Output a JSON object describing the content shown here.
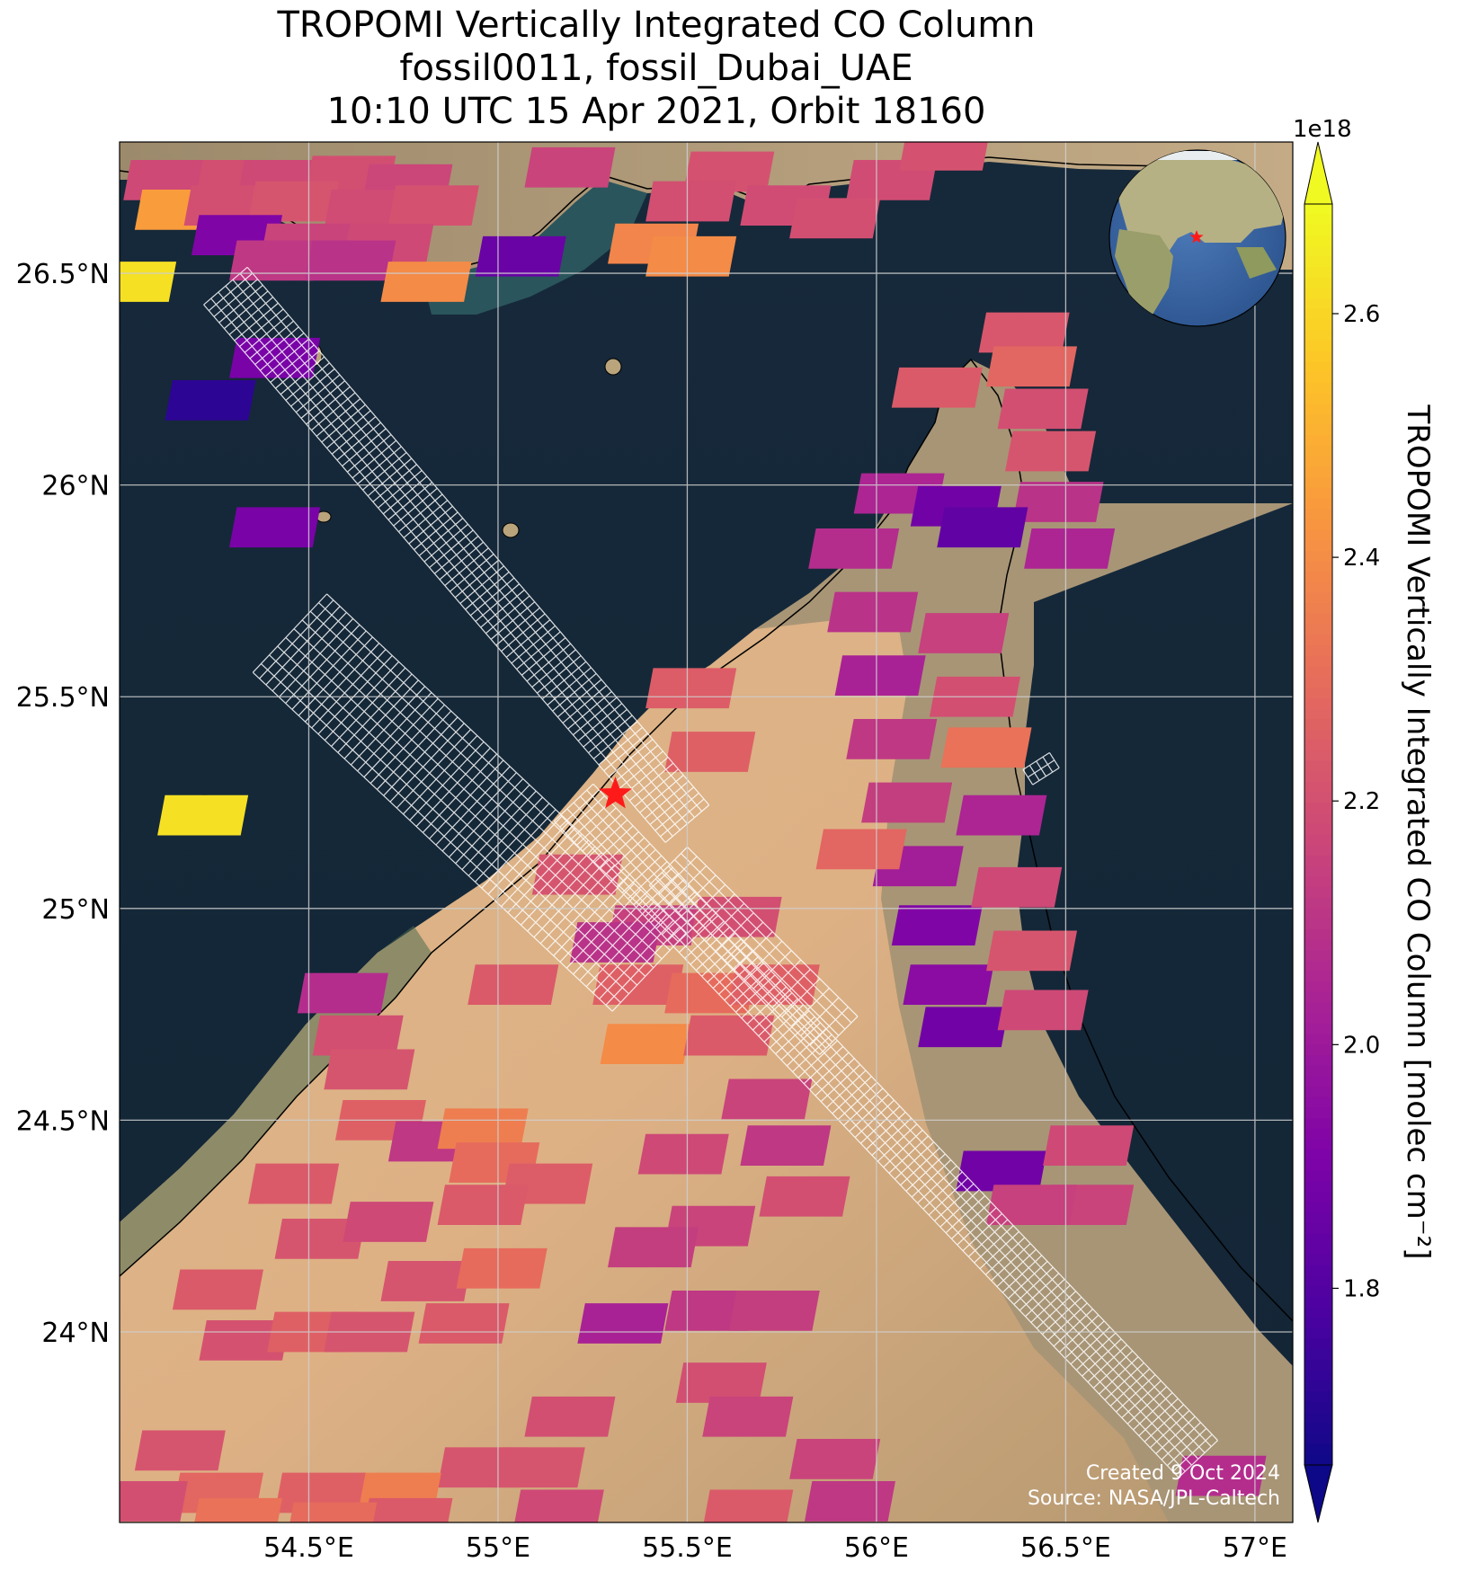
{
  "title": {
    "line1": "TROPOMI Vertically Integrated CO Column",
    "line2": "fossil0011, fossil_Dubai_UAE",
    "line3": "10:10 UTC 15 Apr 2021, Orbit 18160"
  },
  "credits": {
    "created": "Created 9 Oct 2024",
    "source": "Source: NASA/JPL-Caltech"
  },
  "colorbar": {
    "label": "TROPOMI Vertically Integrated CO Column [molec cm⁻²]",
    "exponent": "1e18",
    "ticks": [
      1.8,
      2.0,
      2.2,
      2.4,
      2.6
    ],
    "tick_labels": [
      "1.8",
      "2.0",
      "2.2",
      "2.4",
      "2.6"
    ],
    "min": 1.655,
    "max": 2.69,
    "colormap": "plasma",
    "extend": "both"
  },
  "chart_data": {
    "type": "heatmap",
    "xlabel": "",
    "ylabel": "",
    "xlim": [
      54.0,
      57.1
    ],
    "ylim": [
      23.55,
      26.81
    ],
    "x_ticks": [
      54.5,
      55.0,
      55.5,
      56.0,
      56.5,
      57.0
    ],
    "x_tick_labels": [
      "54.5°E",
      "55°E",
      "55.5°E",
      "56°E",
      "56.5°E",
      "57°E"
    ],
    "y_ticks": [
      24.0,
      24.5,
      25.0,
      25.5,
      26.0,
      26.5
    ],
    "y_tick_labels": [
      "24°N",
      "24.5°N",
      "25°N",
      "25.5°N",
      "26°N",
      "26.5°N"
    ],
    "grid": true,
    "site": {
      "name": "fossil_Dubai_UAE",
      "lon": 55.31,
      "lat": 25.27,
      "marker": "red star"
    },
    "co_pixels_1e18": [
      {
        "lon": 54.12,
        "lat": 26.72,
        "v": 2.18
      },
      {
        "lon": 54.31,
        "lat": 26.72,
        "v": 2.2
      },
      {
        "lon": 54.42,
        "lat": 26.72,
        "v": 2.18
      },
      {
        "lon": 54.6,
        "lat": 26.73,
        "v": 2.2
      },
      {
        "lon": 54.75,
        "lat": 26.71,
        "v": 2.17
      },
      {
        "lon": 55.18,
        "lat": 26.75,
        "v": 2.16
      },
      {
        "lon": 55.6,
        "lat": 26.74,
        "v": 2.21
      },
      {
        "lon": 56.03,
        "lat": 26.72,
        "v": 2.19
      },
      {
        "lon": 56.17,
        "lat": 26.79,
        "v": 2.21
      },
      {
        "lon": 54.15,
        "lat": 26.65,
        "v": 2.45
      },
      {
        "lon": 54.28,
        "lat": 26.66,
        "v": 2.2
      },
      {
        "lon": 54.45,
        "lat": 26.67,
        "v": 2.22
      },
      {
        "lon": 54.65,
        "lat": 26.65,
        "v": 2.19
      },
      {
        "lon": 54.82,
        "lat": 26.66,
        "v": 2.21
      },
      {
        "lon": 55.5,
        "lat": 26.67,
        "v": 2.2
      },
      {
        "lon": 55.75,
        "lat": 26.66,
        "v": 2.19
      },
      {
        "lon": 55.88,
        "lat": 26.63,
        "v": 2.2
      },
      {
        "lon": 54.3,
        "lat": 26.59,
        "v": 1.92
      },
      {
        "lon": 54.48,
        "lat": 26.57,
        "v": 2.16
      },
      {
        "lon": 54.7,
        "lat": 26.57,
        "v": 2.18
      },
      {
        "lon": 55.4,
        "lat": 26.57,
        "v": 2.38
      },
      {
        "lon": 54.4,
        "lat": 26.53,
        "v": 2.12
      },
      {
        "lon": 54.6,
        "lat": 26.53,
        "v": 2.1
      },
      {
        "lon": 55.05,
        "lat": 26.54,
        "v": 1.86
      },
      {
        "lon": 55.5,
        "lat": 26.54,
        "v": 2.4
      },
      {
        "lon": 54.02,
        "lat": 26.48,
        "v": 2.63
      },
      {
        "lon": 54.8,
        "lat": 26.48,
        "v": 2.4
      },
      {
        "lon": 54.4,
        "lat": 26.3,
        "v": 1.9
      },
      {
        "lon": 54.23,
        "lat": 26.2,
        "v": 1.72
      },
      {
        "lon": 54.4,
        "lat": 25.9,
        "v": 1.9
      },
      {
        "lon": 54.21,
        "lat": 25.22,
        "v": 2.63
      },
      {
        "lon": 56.15,
        "lat": 26.23,
        "v": 2.24
      },
      {
        "lon": 56.38,
        "lat": 26.36,
        "v": 2.23
      },
      {
        "lon": 56.4,
        "lat": 26.28,
        "v": 2.28
      },
      {
        "lon": 56.43,
        "lat": 26.18,
        "v": 2.2
      },
      {
        "lon": 56.45,
        "lat": 26.08,
        "v": 2.22
      },
      {
        "lon": 56.47,
        "lat": 25.96,
        "v": 2.1
      },
      {
        "lon": 56.5,
        "lat": 25.85,
        "v": 2.05
      },
      {
        "lon": 56.05,
        "lat": 25.98,
        "v": 2.05
      },
      {
        "lon": 56.2,
        "lat": 25.95,
        "v": 1.88
      },
      {
        "lon": 56.27,
        "lat": 25.9,
        "v": 1.84
      },
      {
        "lon": 55.93,
        "lat": 25.85,
        "v": 2.08
      },
      {
        "lon": 55.98,
        "lat": 25.7,
        "v": 2.1
      },
      {
        "lon": 56.0,
        "lat": 25.55,
        "v": 2.04
      },
      {
        "lon": 56.03,
        "lat": 25.4,
        "v": 2.12
      },
      {
        "lon": 56.07,
        "lat": 25.25,
        "v": 2.14
      },
      {
        "lon": 56.1,
        "lat": 25.1,
        "v": 2.02
      },
      {
        "lon": 56.15,
        "lat": 24.96,
        "v": 1.92
      },
      {
        "lon": 56.18,
        "lat": 24.82,
        "v": 1.95
      },
      {
        "lon": 56.22,
        "lat": 24.72,
        "v": 1.88
      },
      {
        "lon": 56.22,
        "lat": 25.65,
        "v": 2.15
      },
      {
        "lon": 56.25,
        "lat": 25.5,
        "v": 2.2
      },
      {
        "lon": 56.28,
        "lat": 25.38,
        "v": 2.32
      },
      {
        "lon": 56.32,
        "lat": 25.22,
        "v": 2.05
      },
      {
        "lon": 56.36,
        "lat": 25.05,
        "v": 2.18
      },
      {
        "lon": 56.4,
        "lat": 24.9,
        "v": 2.22
      },
      {
        "lon": 56.43,
        "lat": 24.76,
        "v": 2.18
      },
      {
        "lon": 55.5,
        "lat": 25.52,
        "v": 2.25
      },
      {
        "lon": 55.55,
        "lat": 25.37,
        "v": 2.26
      },
      {
        "lon": 55.95,
        "lat": 25.14,
        "v": 2.28
      },
      {
        "lon": 55.2,
        "lat": 25.08,
        "v": 2.22
      },
      {
        "lon": 55.4,
        "lat": 24.96,
        "v": 2.15
      },
      {
        "lon": 55.62,
        "lat": 24.98,
        "v": 2.2
      },
      {
        "lon": 55.3,
        "lat": 24.92,
        "v": 2.1
      },
      {
        "lon": 55.03,
        "lat": 24.82,
        "v": 2.24
      },
      {
        "lon": 55.36,
        "lat": 24.82,
        "v": 2.26
      },
      {
        "lon": 55.55,
        "lat": 24.8,
        "v": 2.3
      },
      {
        "lon": 55.72,
        "lat": 24.82,
        "v": 2.26
      },
      {
        "lon": 54.58,
        "lat": 24.8,
        "v": 2.08
      },
      {
        "lon": 54.62,
        "lat": 24.7,
        "v": 2.2
      },
      {
        "lon": 54.65,
        "lat": 24.62,
        "v": 2.22
      },
      {
        "lon": 55.38,
        "lat": 24.68,
        "v": 2.4
      },
      {
        "lon": 55.6,
        "lat": 24.7,
        "v": 2.24
      },
      {
        "lon": 55.7,
        "lat": 24.55,
        "v": 2.16
      },
      {
        "lon": 55.75,
        "lat": 24.44,
        "v": 2.12
      },
      {
        "lon": 55.8,
        "lat": 24.32,
        "v": 2.2
      },
      {
        "lon": 55.48,
        "lat": 24.42,
        "v": 2.18
      },
      {
        "lon": 55.55,
        "lat": 24.25,
        "v": 2.16
      },
      {
        "lon": 54.68,
        "lat": 24.5,
        "v": 2.26
      },
      {
        "lon": 54.82,
        "lat": 24.45,
        "v": 2.12
      },
      {
        "lon": 54.95,
        "lat": 24.48,
        "v": 2.36
      },
      {
        "lon": 54.98,
        "lat": 24.4,
        "v": 2.3
      },
      {
        "lon": 55.12,
        "lat": 24.35,
        "v": 2.25
      },
      {
        "lon": 54.45,
        "lat": 24.35,
        "v": 2.24
      },
      {
        "lon": 54.52,
        "lat": 24.22,
        "v": 2.22
      },
      {
        "lon": 54.7,
        "lat": 24.26,
        "v": 2.18
      },
      {
        "lon": 54.8,
        "lat": 24.12,
        "v": 2.22
      },
      {
        "lon": 55.0,
        "lat": 24.15,
        "v": 2.3
      },
      {
        "lon": 54.25,
        "lat": 24.1,
        "v": 2.24
      },
      {
        "lon": 54.32,
        "lat": 23.98,
        "v": 2.21
      },
      {
        "lon": 54.5,
        "lat": 24.0,
        "v": 2.26
      },
      {
        "lon": 54.65,
        "lat": 24.0,
        "v": 2.22
      },
      {
        "lon": 54.9,
        "lat": 24.02,
        "v": 2.24
      },
      {
        "lon": 55.32,
        "lat": 24.02,
        "v": 2.04
      },
      {
        "lon": 55.55,
        "lat": 24.05,
        "v": 2.12
      },
      {
        "lon": 55.72,
        "lat": 24.05,
        "v": 2.14
      },
      {
        "lon": 55.58,
        "lat": 23.88,
        "v": 2.2
      },
      {
        "lon": 55.65,
        "lat": 23.8,
        "v": 2.16
      },
      {
        "lon": 55.18,
        "lat": 23.8,
        "v": 2.2
      },
      {
        "lon": 55.1,
        "lat": 23.68,
        "v": 2.22
      },
      {
        "lon": 55.15,
        "lat": 23.58,
        "v": 2.18
      },
      {
        "lon": 54.95,
        "lat": 23.68,
        "v": 2.22
      },
      {
        "lon": 54.72,
        "lat": 23.62,
        "v": 2.36
      },
      {
        "lon": 54.75,
        "lat": 23.56,
        "v": 2.24
      },
      {
        "lon": 54.52,
        "lat": 23.62,
        "v": 2.26
      },
      {
        "lon": 54.55,
        "lat": 23.55,
        "v": 2.3
      },
      {
        "lon": 54.15,
        "lat": 23.72,
        "v": 2.22
      },
      {
        "lon": 54.25,
        "lat": 23.62,
        "v": 2.28
      },
      {
        "lon": 54.3,
        "lat": 23.56,
        "v": 2.32
      },
      {
        "lon": 54.05,
        "lat": 23.6,
        "v": 2.2
      },
      {
        "lon": 55.88,
        "lat": 23.7,
        "v": 2.16
      },
      {
        "lon": 55.92,
        "lat": 23.6,
        "v": 2.12
      },
      {
        "lon": 55.65,
        "lat": 23.58,
        "v": 2.24
      },
      {
        "lon": 56.32,
        "lat": 24.38,
        "v": 1.88
      },
      {
        "lon": 56.55,
        "lat": 24.44,
        "v": 2.18
      },
      {
        "lon": 56.55,
        "lat": 24.3,
        "v": 2.16
      },
      {
        "lon": 56.4,
        "lat": 24.3,
        "v": 2.15
      },
      {
        "lon": 56.9,
        "lat": 23.66,
        "v": 2.08
      },
      {
        "lon": 54.95,
        "lat": 24.3,
        "v": 2.24
      },
      {
        "lon": 55.4,
        "lat": 24.2,
        "v": 2.14
      }
    ]
  }
}
